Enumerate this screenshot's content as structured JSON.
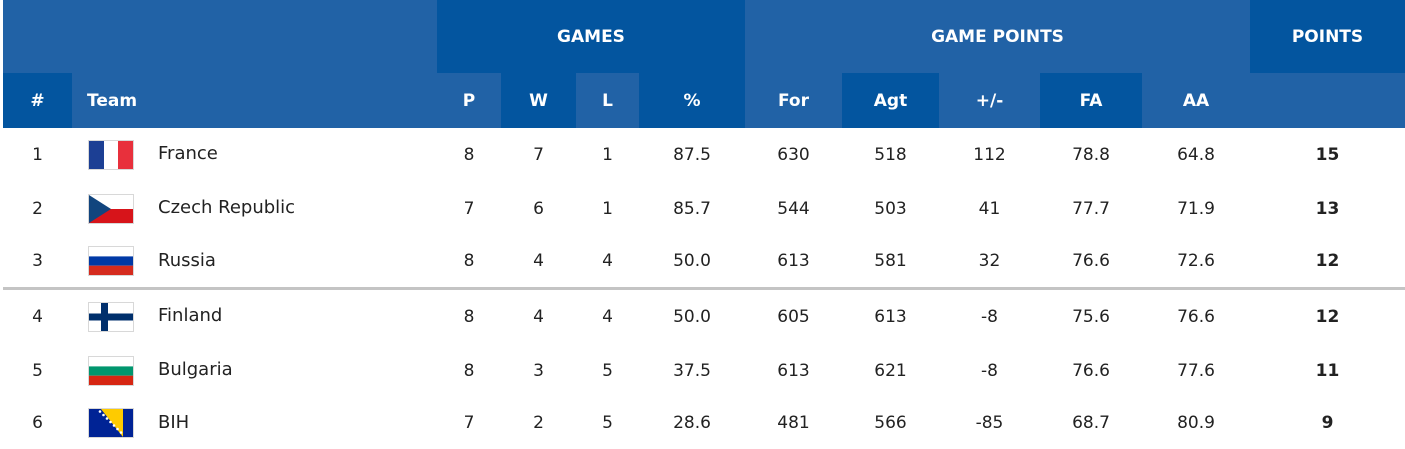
{
  "colors": {
    "header_light": "#2162a6",
    "header_dark": "#03559f",
    "divider": "#c4c4c4"
  },
  "header": {
    "groups": {
      "games": "GAMES",
      "game_points": "GAME POINTS",
      "points": "POINTS"
    },
    "columns": {
      "rank": "#",
      "team": "Team",
      "p": "P",
      "w": "W",
      "l": "L",
      "pct": "%",
      "for": "For",
      "agt": "Agt",
      "diff": "+/-",
      "fa": "FA",
      "aa": "AA"
    }
  },
  "rows": [
    {
      "rank": "1",
      "flag": "flag-france-icon",
      "team": "France",
      "p": "8",
      "w": "7",
      "l": "1",
      "pct": "87.5",
      "for": "630",
      "agt": "518",
      "diff": "112",
      "fa": "78.8",
      "aa": "64.8",
      "points": "15"
    },
    {
      "rank": "2",
      "flag": "flag-czech-republic-icon",
      "team": "Czech Republic",
      "p": "7",
      "w": "6",
      "l": "1",
      "pct": "85.7",
      "for": "544",
      "agt": "503",
      "diff": "41",
      "fa": "77.7",
      "aa": "71.9",
      "points": "13"
    },
    {
      "rank": "3",
      "flag": "flag-russia-icon",
      "team": "Russia",
      "p": "8",
      "w": "4",
      "l": "4",
      "pct": "50.0",
      "for": "613",
      "agt": "581",
      "diff": "32",
      "fa": "76.6",
      "aa": "72.6",
      "points": "12"
    },
    {
      "rank": "4",
      "flag": "flag-finland-icon",
      "team": "Finland",
      "p": "8",
      "w": "4",
      "l": "4",
      "pct": "50.0",
      "for": "605",
      "agt": "613",
      "diff": "-8",
      "fa": "75.6",
      "aa": "76.6",
      "points": "12"
    },
    {
      "rank": "5",
      "flag": "flag-bulgaria-icon",
      "team": "Bulgaria",
      "p": "8",
      "w": "3",
      "l": "5",
      "pct": "37.5",
      "for": "613",
      "agt": "621",
      "diff": "-8",
      "fa": "76.6",
      "aa": "77.6",
      "points": "11"
    },
    {
      "rank": "6",
      "flag": "flag-bih-icon",
      "team": "BIH",
      "p": "7",
      "w": "2",
      "l": "5",
      "pct": "28.6",
      "for": "481",
      "agt": "566",
      "diff": "-85",
      "fa": "68.7",
      "aa": "80.9",
      "points": "9"
    }
  ]
}
